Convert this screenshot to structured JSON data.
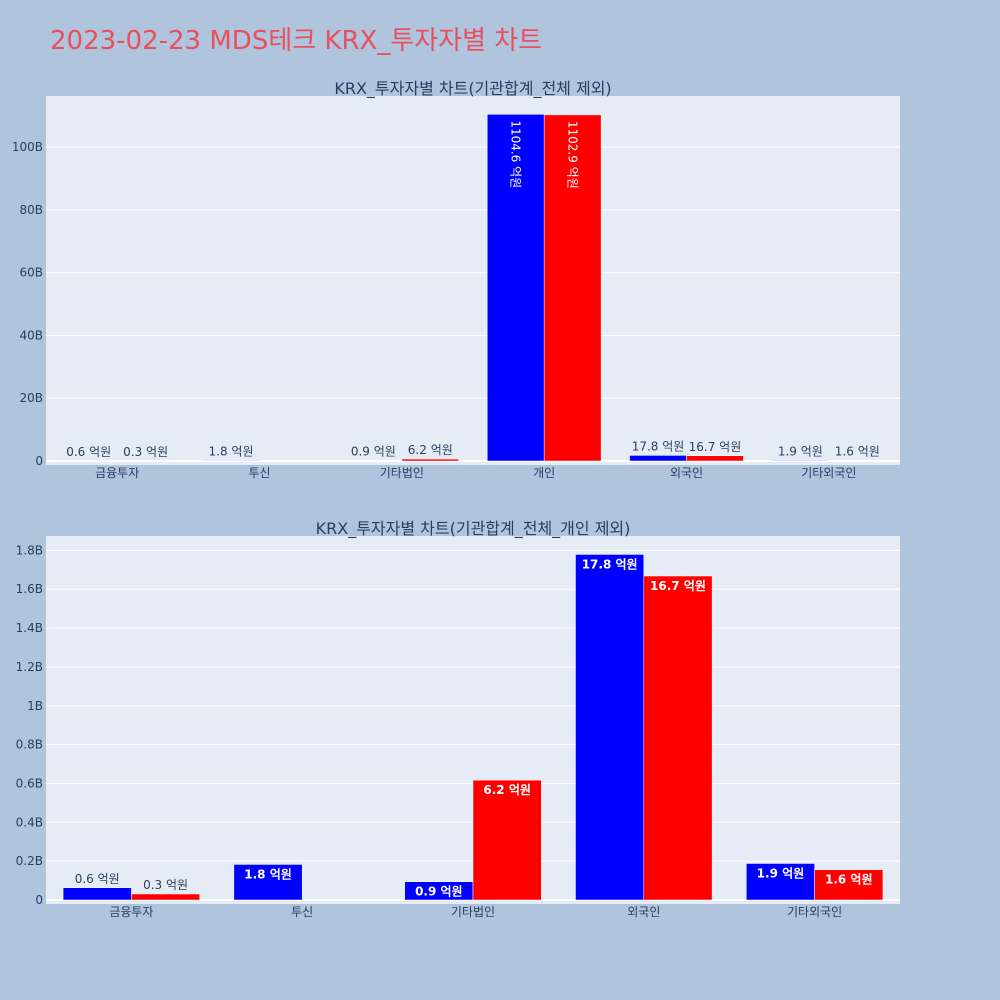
{
  "page": {
    "title": "2023-02-23 MDS테크 KRX_투자자별 차트"
  },
  "colors": {
    "series_a": "#0000ff",
    "series_b": "#ff0000",
    "plot_bg": "#e5ecf6",
    "page_bg": "#b0c4de",
    "title": "#e8505b"
  },
  "chart_data": [
    {
      "type": "bar",
      "title": "KRX_투자자별 차트(기관합계_전체 제외)",
      "categories": [
        "금융투자",
        "투신",
        "기타법인",
        "개인",
        "외국인",
        "기타외국인"
      ],
      "series": [
        {
          "values": [
            0.06,
            0.18,
            0.09,
            110.46,
            1.78,
            0.19
          ],
          "labels": [
            "0.6 억원",
            "1.8 억원",
            "0.9 억원",
            "1104.6 억원",
            "17.8 억원",
            "1.9 억원"
          ]
        },
        {
          "values": [
            0.03,
            0,
            0.62,
            110.29,
            1.67,
            0.16
          ],
          "labels": [
            "0.3 억원",
            "",
            "6.2 억원",
            "1102.9 억원",
            "16.7 억원",
            "1.6 억원"
          ]
        }
      ],
      "yticks": [
        0,
        20,
        40,
        60,
        80,
        100
      ],
      "ytick_labels": [
        "0",
        "20B",
        "40B",
        "60B",
        "80B",
        "100B"
      ],
      "ylim": [
        0,
        116.3
      ],
      "unit": "B"
    },
    {
      "type": "bar",
      "title": "KRX_투자자별 차트(기관합계_전체_개인 제외)",
      "categories": [
        "금융투자",
        "투신",
        "기타법인",
        "외국인",
        "기타외국인"
      ],
      "series": [
        {
          "values": [
            0.063,
            0.183,
            0.094,
            1.779,
            0.188
          ],
          "labels": [
            "0.6 억원",
            "1.8 억원",
            "0.9 억원",
            "17.8 억원",
            "1.9 억원"
          ]
        },
        {
          "values": [
            0.031,
            0,
            0.617,
            1.668,
            0.156
          ],
          "labels": [
            "0.3 억원",
            "",
            "6.2 억원",
            "16.7 억원",
            "1.6 억원"
          ]
        }
      ],
      "yticks": [
        0,
        0.2,
        0.4,
        0.6,
        0.8,
        1,
        1.2,
        1.4,
        1.6,
        1.8
      ],
      "ytick_labels": [
        "0",
        "0.2B",
        "0.4B",
        "0.6B",
        "0.8B",
        "1B",
        "1.2B",
        "1.4B",
        "1.6B",
        "1.8B"
      ],
      "ylim": [
        0,
        1.874
      ],
      "unit": "B"
    }
  ]
}
